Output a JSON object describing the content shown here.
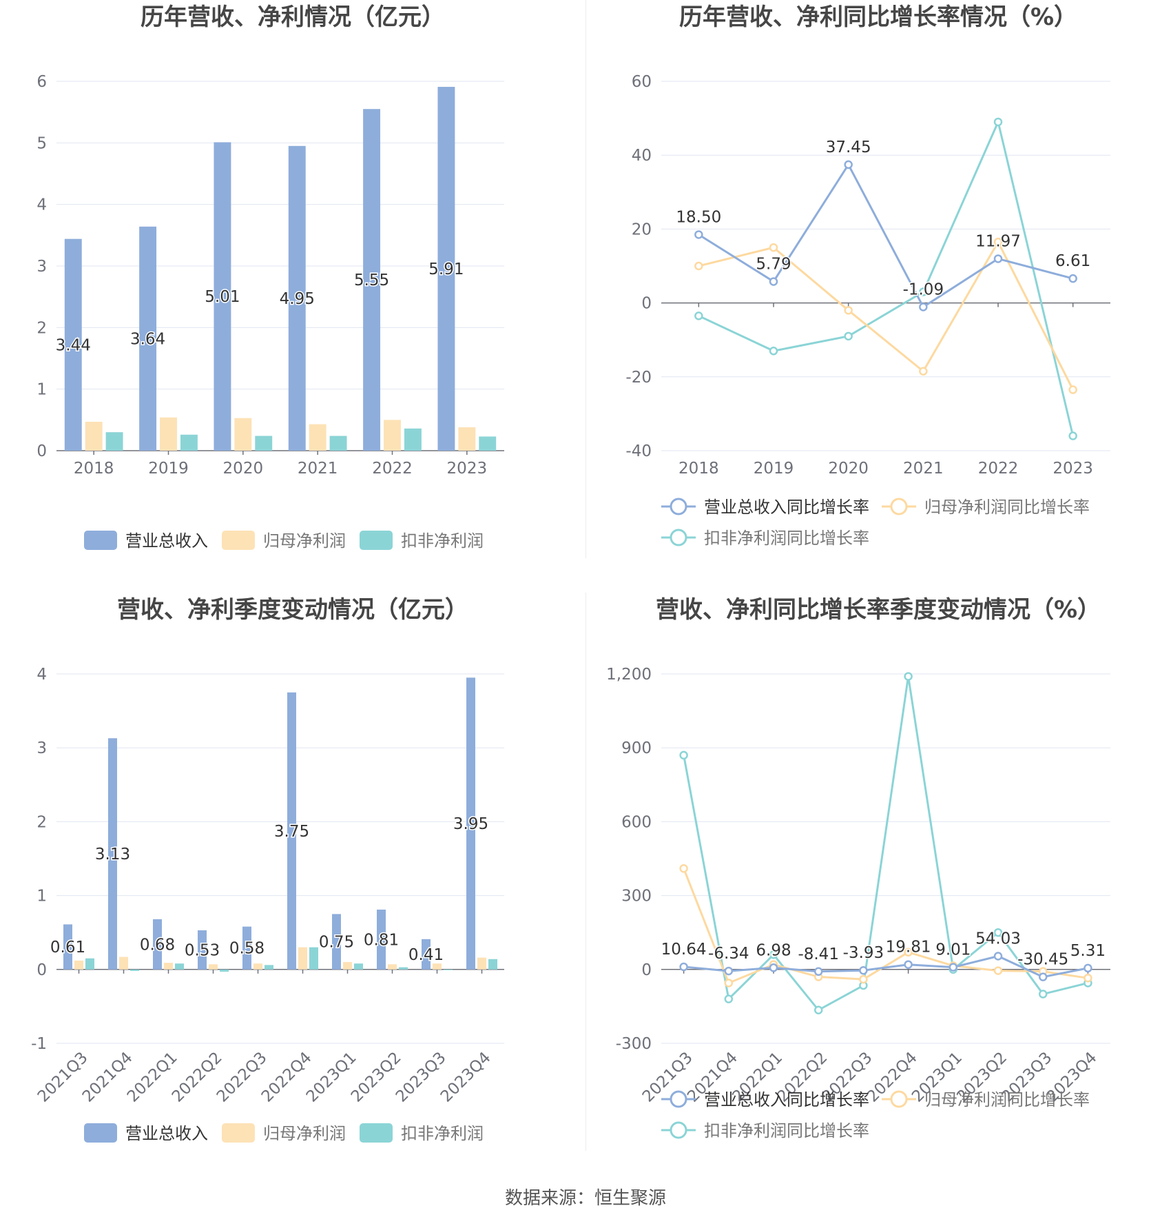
{
  "source": "数据来源：恒生聚源",
  "colors": {
    "revenue": "#8eaddb",
    "net_profit": "#fde2b6",
    "deducted_profit": "#8bd4d6",
    "axis": "#6e7079",
    "grid": "#e0e6f1"
  },
  "chart_data": [
    {
      "id": "annual-amounts",
      "type": "bar",
      "title": "历年营收、净利情况（亿元）",
      "categories": [
        "2018",
        "2019",
        "2020",
        "2021",
        "2022",
        "2023"
      ],
      "ylim": [
        0,
        6
      ],
      "yticks": [
        "0",
        "1",
        "2",
        "3",
        "4",
        "5",
        "6"
      ],
      "series": [
        {
          "name": "营业总收入",
          "values": [
            3.44,
            3.64,
            5.01,
            4.95,
            5.55,
            5.91
          ],
          "labels": [
            "3.44",
            "3.64",
            "5.01",
            "4.95",
            "5.55",
            "5.91"
          ]
        },
        {
          "name": "归母净利润",
          "values": [
            0.47,
            0.54,
            0.53,
            0.43,
            0.5,
            0.38
          ]
        },
        {
          "name": "扣非净利润",
          "values": [
            0.3,
            0.26,
            0.24,
            0.24,
            0.36,
            0.23
          ]
        }
      ],
      "grid": true,
      "legend_position": "bottom"
    },
    {
      "id": "annual-growth",
      "type": "line",
      "title": "历年营收、净利同比增长率情况（%）",
      "categories": [
        "2018",
        "2019",
        "2020",
        "2021",
        "2022",
        "2023"
      ],
      "ylim": [
        -40,
        60
      ],
      "yticks": [
        "-40",
        "-20",
        "0",
        "20",
        "40",
        "60"
      ],
      "series": [
        {
          "name": "营业总收入同比增长率",
          "values": [
            18.5,
            5.79,
            37.45,
            -1.09,
            11.97,
            6.61
          ],
          "labels": [
            "18.50",
            "5.79",
            "37.45",
            "-1.09",
            "11.97",
            "6.61"
          ]
        },
        {
          "name": "归母净利润同比增长率",
          "values": [
            10.0,
            15.0,
            -2.0,
            -18.5,
            16.5,
            -23.5
          ]
        },
        {
          "name": "扣非净利润同比增长率",
          "values": [
            -3.5,
            -13.0,
            -9.0,
            3.0,
            49.0,
            -36.0
          ]
        }
      ],
      "grid": true,
      "legend_position": "bottom"
    },
    {
      "id": "quarterly-amounts",
      "type": "bar",
      "title": "营收、净利季度变动情况（亿元）",
      "categories": [
        "2021Q3",
        "2021Q4",
        "2022Q1",
        "2022Q2",
        "2022Q3",
        "2022Q4",
        "2023Q1",
        "2023Q2",
        "2023Q3",
        "2023Q4"
      ],
      "ylim": [
        -1,
        4
      ],
      "yticks": [
        "-1",
        "0",
        "1",
        "2",
        "3",
        "4"
      ],
      "series": [
        {
          "name": "营业总收入",
          "values": [
            0.61,
            3.13,
            0.68,
            0.53,
            0.58,
            3.75,
            0.75,
            0.81,
            0.41,
            3.95
          ],
          "labels": [
            "0.61",
            "3.13",
            "0.68",
            "0.53",
            "0.58",
            "3.75",
            "0.75",
            "0.81",
            "0.41",
            "3.95"
          ]
        },
        {
          "name": "归母净利润",
          "values": [
            0.12,
            0.17,
            0.09,
            0.07,
            0.08,
            0.3,
            0.1,
            0.07,
            0.08,
            0.16
          ]
        },
        {
          "name": "扣非净利润",
          "values": [
            0.15,
            -0.02,
            0.08,
            -0.03,
            0.06,
            0.3,
            0.08,
            0.03,
            0.0,
            0.14
          ]
        }
      ],
      "grid": true,
      "legend_position": "bottom"
    },
    {
      "id": "quarterly-growth",
      "type": "line",
      "title": "营收、净利同比增长率季度变动情况（%）",
      "categories": [
        "2021Q3",
        "2021Q4",
        "2022Q1",
        "2022Q2",
        "2022Q3",
        "2022Q4",
        "2023Q1",
        "2023Q2",
        "2023Q3",
        "2023Q4"
      ],
      "ylim": [
        -300,
        1200
      ],
      "yticks": [
        "-300",
        "0",
        "300",
        "600",
        "900",
        "1,200"
      ],
      "series": [
        {
          "name": "营业总收入同比增长率",
          "values": [
            10.64,
            -6.34,
            6.98,
            -8.41,
            -3.93,
            19.81,
            9.01,
            54.03,
            -30.45,
            5.31
          ],
          "labels": [
            "10.64",
            "-6.34",
            "6.98",
            "-8.41",
            "-3.93",
            "19.81",
            "9.01",
            "54.03",
            "-30.45",
            "5.31"
          ]
        },
        {
          "name": "归母净利润同比增长率",
          "values": [
            410,
            -55,
            20,
            -30,
            -40,
            70,
            15,
            -5,
            -8,
            -35
          ]
        },
        {
          "name": "扣非净利润同比增长率",
          "values": [
            870,
            -120,
            60,
            -165,
            -65,
            1190,
            0,
            150,
            -100,
            -55
          ]
        }
      ],
      "grid": true,
      "legend_position": "bottom"
    }
  ]
}
